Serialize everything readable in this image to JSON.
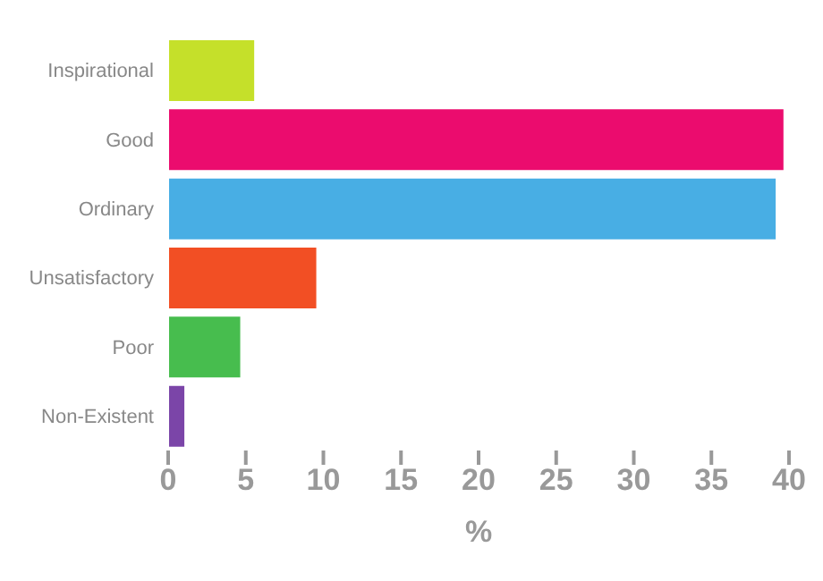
{
  "chart_data": {
    "type": "bar",
    "orientation": "horizontal",
    "xlabel": "%",
    "categories": [
      "Inspirational",
      "Good",
      "Ordinary",
      "Unsatisfactory",
      "Poor",
      "Non-Existent"
    ],
    "values": [
      5.6,
      39.7,
      39.2,
      9.6,
      4.7,
      1.1
    ],
    "colors": [
      "#c5e02a",
      "#eb0c6e",
      "#48aee4",
      "#f24f24",
      "#47bd4e",
      "#7b45a8"
    ],
    "xlim": [
      0,
      40
    ],
    "xticks": [
      0,
      5,
      10,
      15,
      20,
      25,
      30,
      35,
      40
    ],
    "grid": false,
    "legend": false
  }
}
